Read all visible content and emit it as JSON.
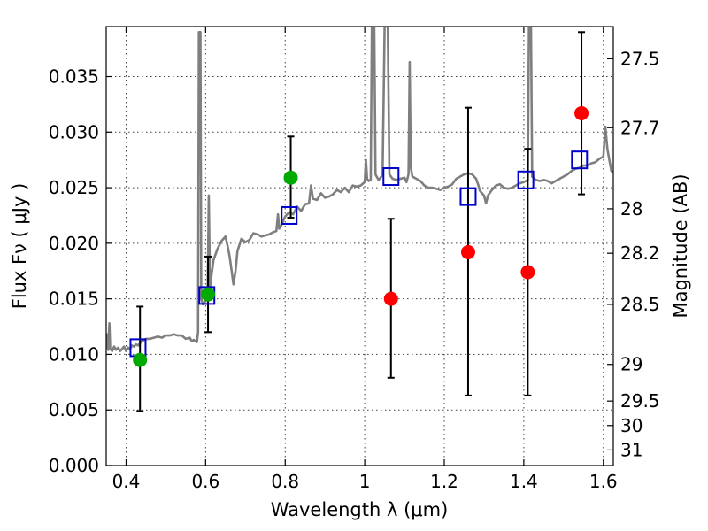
{
  "chart_data": {
    "type": "scatter",
    "xlabel": "Wavelength  λ (μm)",
    "ylabel": "Flux  Fν  ( μJy )",
    "y2label": "Magnitude (AB)",
    "xlim": [
      0.35,
      1.625
    ],
    "ylim": [
      0.0,
      0.0395
    ],
    "grid": true,
    "x_ticks": [
      0.4,
      0.6,
      0.8,
      1.0,
      1.2,
      1.4,
      1.6
    ],
    "x_tick_labels": [
      "0.4",
      "0.6",
      "0.8",
      "1",
      "1.2",
      "1.4",
      "1.6"
    ],
    "y_ticks": [
      0.0,
      0.005,
      0.01,
      0.015,
      0.02,
      0.025,
      0.03,
      0.035
    ],
    "y_tick_labels": [
      "0.000",
      "0.005",
      "0.010",
      "0.015",
      "0.020",
      "0.025",
      "0.030",
      "0.035"
    ],
    "y2_ticks": [
      {
        "label": "27.5",
        "flux": 0.0366
      },
      {
        "label": "27.7",
        "flux": 0.0304
      },
      {
        "label": "28",
        "flux": 0.0231
      },
      {
        "label": "28.2",
        "flux": 0.0191
      },
      {
        "label": "28.5",
        "flux": 0.0145
      },
      {
        "label": "29",
        "flux": 0.0091
      },
      {
        "label": "29.5",
        "flux": 0.0058
      },
      {
        "label": "30",
        "flux": 0.0036
      },
      {
        "label": "31",
        "flux": 0.0014
      }
    ],
    "colors": {
      "spectrum": "#7f7f7f",
      "detection": "#00aa00",
      "upper_limit": "#ff0000",
      "model": "#0000cc",
      "errorbar": "#000000"
    },
    "series": [
      {
        "kind": "spectrum",
        "points": [
          [
            0.35,
            0.0105
          ],
          [
            0.352,
            0.0118
          ],
          [
            0.355,
            0.0104
          ],
          [
            0.358,
            0.0128
          ],
          [
            0.36,
            0.0105
          ],
          [
            0.365,
            0.0103
          ],
          [
            0.37,
            0.0107
          ],
          [
            0.375,
            0.0104
          ],
          [
            0.38,
            0.0106
          ],
          [
            0.385,
            0.0103
          ],
          [
            0.39,
            0.0105
          ],
          [
            0.395,
            0.0107
          ],
          [
            0.4,
            0.0103
          ],
          [
            0.405,
            0.0106
          ],
          [
            0.41,
            0.0105
          ],
          [
            0.415,
            0.0108
          ],
          [
            0.42,
            0.0107
          ],
          [
            0.425,
            0.0109
          ],
          [
            0.43,
            0.0108
          ],
          [
            0.435,
            0.011
          ],
          [
            0.44,
            0.0112
          ],
          [
            0.45,
            0.0114
          ],
          [
            0.46,
            0.0114
          ],
          [
            0.47,
            0.0115
          ],
          [
            0.48,
            0.0116
          ],
          [
            0.49,
            0.0115
          ],
          [
            0.5,
            0.0117
          ],
          [
            0.51,
            0.0117
          ],
          [
            0.52,
            0.0118
          ],
          [
            0.53,
            0.0117
          ],
          [
            0.54,
            0.0117
          ],
          [
            0.55,
            0.0114
          ],
          [
            0.56,
            0.0115
          ],
          [
            0.565,
            0.0112
          ],
          [
            0.57,
            0.0113
          ],
          [
            0.578,
            0.0111
          ],
          [
            0.581,
            0.012
          ],
          [
            0.583,
            0.039
          ],
          [
            0.587,
            0.039
          ],
          [
            0.589,
            0.015
          ],
          [
            0.593,
            0.0145
          ],
          [
            0.6,
            0.0148
          ],
          [
            0.605,
            0.0152
          ],
          [
            0.608,
            0.0243
          ],
          [
            0.611,
            0.016
          ],
          [
            0.615,
            0.0172
          ],
          [
            0.62,
            0.0185
          ],
          [
            0.63,
            0.0195
          ],
          [
            0.64,
            0.0202
          ],
          [
            0.65,
            0.0206
          ],
          [
            0.655,
            0.0198
          ],
          [
            0.66,
            0.0189
          ],
          [
            0.665,
            0.0176
          ],
          [
            0.67,
            0.0163
          ],
          [
            0.675,
            0.0175
          ],
          [
            0.68,
            0.0193
          ],
          [
            0.69,
            0.0204
          ],
          [
            0.7,
            0.0201
          ],
          [
            0.71,
            0.0203
          ],
          [
            0.72,
            0.0209
          ],
          [
            0.73,
            0.0208
          ],
          [
            0.74,
            0.0206
          ],
          [
            0.75,
            0.0207
          ],
          [
            0.76,
            0.0208
          ],
          [
            0.77,
            0.021
          ],
          [
            0.778,
            0.0211
          ],
          [
            0.782,
            0.0226
          ],
          [
            0.785,
            0.0213
          ],
          [
            0.79,
            0.0216
          ],
          [
            0.8,
            0.0224
          ],
          [
            0.81,
            0.0228
          ],
          [
            0.82,
            0.0226
          ],
          [
            0.83,
            0.0233
          ],
          [
            0.84,
            0.0229
          ],
          [
            0.85,
            0.0235
          ],
          [
            0.86,
            0.0236
          ],
          [
            0.865,
            0.0252
          ],
          [
            0.87,
            0.024
          ],
          [
            0.88,
            0.0239
          ],
          [
            0.89,
            0.0245
          ],
          [
            0.9,
            0.0241
          ],
          [
            0.91,
            0.0242
          ],
          [
            0.92,
            0.0244
          ],
          [
            0.93,
            0.0248
          ],
          [
            0.94,
            0.0246
          ],
          [
            0.95,
            0.025
          ],
          [
            0.96,
            0.0246
          ],
          [
            0.97,
            0.0252
          ],
          [
            0.98,
            0.0251
          ],
          [
            0.99,
            0.0252
          ],
          [
            1.0,
            0.0255
          ],
          [
            1.003,
            0.0275
          ],
          [
            1.006,
            0.0258
          ],
          [
            1.01,
            0.0256
          ],
          [
            1.015,
            0.0257
          ],
          [
            1.018,
            0.0395
          ],
          [
            1.024,
            0.0395
          ],
          [
            1.027,
            0.0262
          ],
          [
            1.03,
            0.026
          ],
          [
            1.035,
            0.0257
          ],
          [
            1.04,
            0.0259
          ],
          [
            1.045,
            0.0262
          ],
          [
            1.05,
            0.0395
          ],
          [
            1.058,
            0.0395
          ],
          [
            1.062,
            0.0262
          ],
          [
            1.07,
            0.0258
          ],
          [
            1.08,
            0.0257
          ],
          [
            1.09,
            0.0258
          ],
          [
            1.1,
            0.0259
          ],
          [
            1.105,
            0.0255
          ],
          [
            1.11,
            0.0262
          ],
          [
            1.113,
            0.0363
          ],
          [
            1.116,
            0.0268
          ],
          [
            1.12,
            0.026
          ],
          [
            1.13,
            0.0258
          ],
          [
            1.14,
            0.0256
          ],
          [
            1.15,
            0.0252
          ],
          [
            1.16,
            0.025
          ],
          [
            1.17,
            0.025
          ],
          [
            1.18,
            0.0249
          ],
          [
            1.19,
            0.0248
          ],
          [
            1.2,
            0.025
          ],
          [
            1.21,
            0.0251
          ],
          [
            1.22,
            0.0253
          ],
          [
            1.23,
            0.0258
          ],
          [
            1.24,
            0.026
          ],
          [
            1.25,
            0.0262
          ],
          [
            1.26,
            0.0263
          ],
          [
            1.27,
            0.0262
          ],
          [
            1.28,
            0.0258
          ],
          [
            1.285,
            0.0253
          ],
          [
            1.29,
            0.0247
          ],
          [
            1.3,
            0.0243
          ],
          [
            1.305,
            0.0236
          ],
          [
            1.31,
            0.0243
          ],
          [
            1.32,
            0.0248
          ],
          [
            1.33,
            0.0252
          ],
          [
            1.34,
            0.0253
          ],
          [
            1.35,
            0.025
          ],
          [
            1.36,
            0.0249
          ],
          [
            1.37,
            0.025
          ],
          [
            1.38,
            0.0252
          ],
          [
            1.39,
            0.0254
          ],
          [
            1.4,
            0.0255
          ],
          [
            1.41,
            0.0257
          ],
          [
            1.413,
            0.0395
          ],
          [
            1.418,
            0.0395
          ],
          [
            1.421,
            0.026
          ],
          [
            1.43,
            0.0257
          ],
          [
            1.44,
            0.0256
          ],
          [
            1.45,
            0.0257
          ],
          [
            1.46,
            0.0256
          ],
          [
            1.47,
            0.0254
          ],
          [
            1.48,
            0.0256
          ],
          [
            1.49,
            0.0258
          ],
          [
            1.5,
            0.026
          ],
          [
            1.51,
            0.0262
          ],
          [
            1.52,
            0.0265
          ],
          [
            1.53,
            0.0267
          ],
          [
            1.54,
            0.0268
          ],
          [
            1.55,
            0.027
          ],
          [
            1.56,
            0.027
          ],
          [
            1.57,
            0.0272
          ],
          [
            1.58,
            0.0273
          ],
          [
            1.59,
            0.0276
          ],
          [
            1.6,
            0.0278
          ],
          [
            1.605,
            0.0305
          ],
          [
            1.61,
            0.0285
          ],
          [
            1.615,
            0.0275
          ],
          [
            1.62,
            0.0265
          ],
          [
            1.625,
            0.0264
          ]
        ]
      },
      {
        "kind": "errorbars",
        "points": [
          {
            "x": 0.435,
            "low": 0.0049,
            "high": 0.0143
          },
          {
            "x": 0.606,
            "low": 0.012,
            "high": 0.0188
          },
          {
            "x": 0.814,
            "low": 0.0223,
            "high": 0.0296
          },
          {
            "x": 1.066,
            "low": 0.0079,
            "high": 0.0222
          },
          {
            "x": 1.26,
            "low": 0.0063,
            "high": 0.0322
          },
          {
            "x": 1.41,
            "low": 0.0063,
            "high": 0.0285
          },
          {
            "x": 1.545,
            "low": 0.0244,
            "high": 0.039
          }
        ]
      },
      {
        "kind": "model",
        "marker": "open-square",
        "points": [
          [
            0.43,
            0.0106
          ],
          [
            0.603,
            0.0153
          ],
          [
            0.81,
            0.0225
          ],
          [
            1.066,
            0.026
          ],
          [
            1.26,
            0.0242
          ],
          [
            1.405,
            0.0257
          ],
          [
            1.54,
            0.0275
          ]
        ]
      },
      {
        "kind": "detection",
        "marker": "filled-circle",
        "points": [
          [
            0.435,
            0.0095
          ],
          [
            0.606,
            0.0154
          ],
          [
            0.814,
            0.0259
          ]
        ]
      },
      {
        "kind": "upper_limit",
        "marker": "filled-circle",
        "points": [
          [
            1.066,
            0.015
          ],
          [
            1.26,
            0.0192
          ],
          [
            1.41,
            0.0174
          ],
          [
            1.545,
            0.0317
          ]
        ]
      }
    ]
  }
}
